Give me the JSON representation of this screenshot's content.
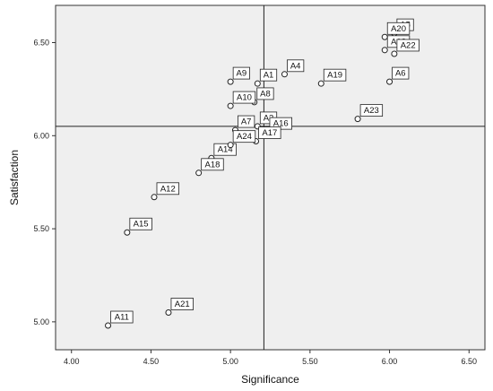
{
  "chart_data": {
    "type": "scatter",
    "title": "",
    "xlabel": "Significance",
    "ylabel": "Satisfaction",
    "xlim": [
      3.9,
      6.6
    ],
    "ylim": [
      4.85,
      6.7
    ],
    "xticks": [
      "4.00",
      "4.50",
      "5.00",
      "5.50",
      "6.00",
      "6.50"
    ],
    "yticks": [
      "5.00",
      "5.50",
      "6.00",
      "6.50"
    ],
    "reference_lines": {
      "x": 5.21,
      "y": 6.05
    },
    "grid": false,
    "colors": {
      "plot_bg": "#efefef",
      "axis": "#333333",
      "marker_fill": "#ffffff",
      "marker_stroke": "#222222"
    },
    "points": [
      {
        "label": "A1",
        "x": 5.17,
        "y": 6.28
      },
      {
        "label": "A2",
        "x": 5.17,
        "y": 6.05
      },
      {
        "label": "A4",
        "x": 5.34,
        "y": 6.33
      },
      {
        "label": "A5",
        "x": 6.03,
        "y": 6.55
      },
      {
        "label": "A6",
        "x": 6.0,
        "y": 6.29
      },
      {
        "label": "A7",
        "x": 5.03,
        "y": 6.03
      },
      {
        "label": "A8",
        "x": 5.15,
        "y": 6.18
      },
      {
        "label": "A9",
        "x": 5.0,
        "y": 6.29
      },
      {
        "label": "A10",
        "x": 5.0,
        "y": 6.16
      },
      {
        "label": "A11",
        "x": 4.23,
        "y": 4.98
      },
      {
        "label": "A12",
        "x": 4.52,
        "y": 5.67
      },
      {
        "label": "A13",
        "x": 5.97,
        "y": 6.46
      },
      {
        "label": "A14",
        "x": 4.88,
        "y": 5.88
      },
      {
        "label": "A15",
        "x": 4.35,
        "y": 5.48
      },
      {
        "label": "A16",
        "x": 5.23,
        "y": 6.02
      },
      {
        "label": "A17",
        "x": 5.16,
        "y": 5.97
      },
      {
        "label": "A18",
        "x": 4.8,
        "y": 5.8
      },
      {
        "label": "A19",
        "x": 5.57,
        "y": 6.28
      },
      {
        "label": "A20",
        "x": 5.97,
        "y": 6.53
      },
      {
        "label": "A21",
        "x": 4.61,
        "y": 5.05
      },
      {
        "label": "A22",
        "x": 6.03,
        "y": 6.44
      },
      {
        "label": "A23",
        "x": 5.8,
        "y": 6.09
      },
      {
        "label": "A24",
        "x": 5.0,
        "y": 5.95
      }
    ]
  }
}
